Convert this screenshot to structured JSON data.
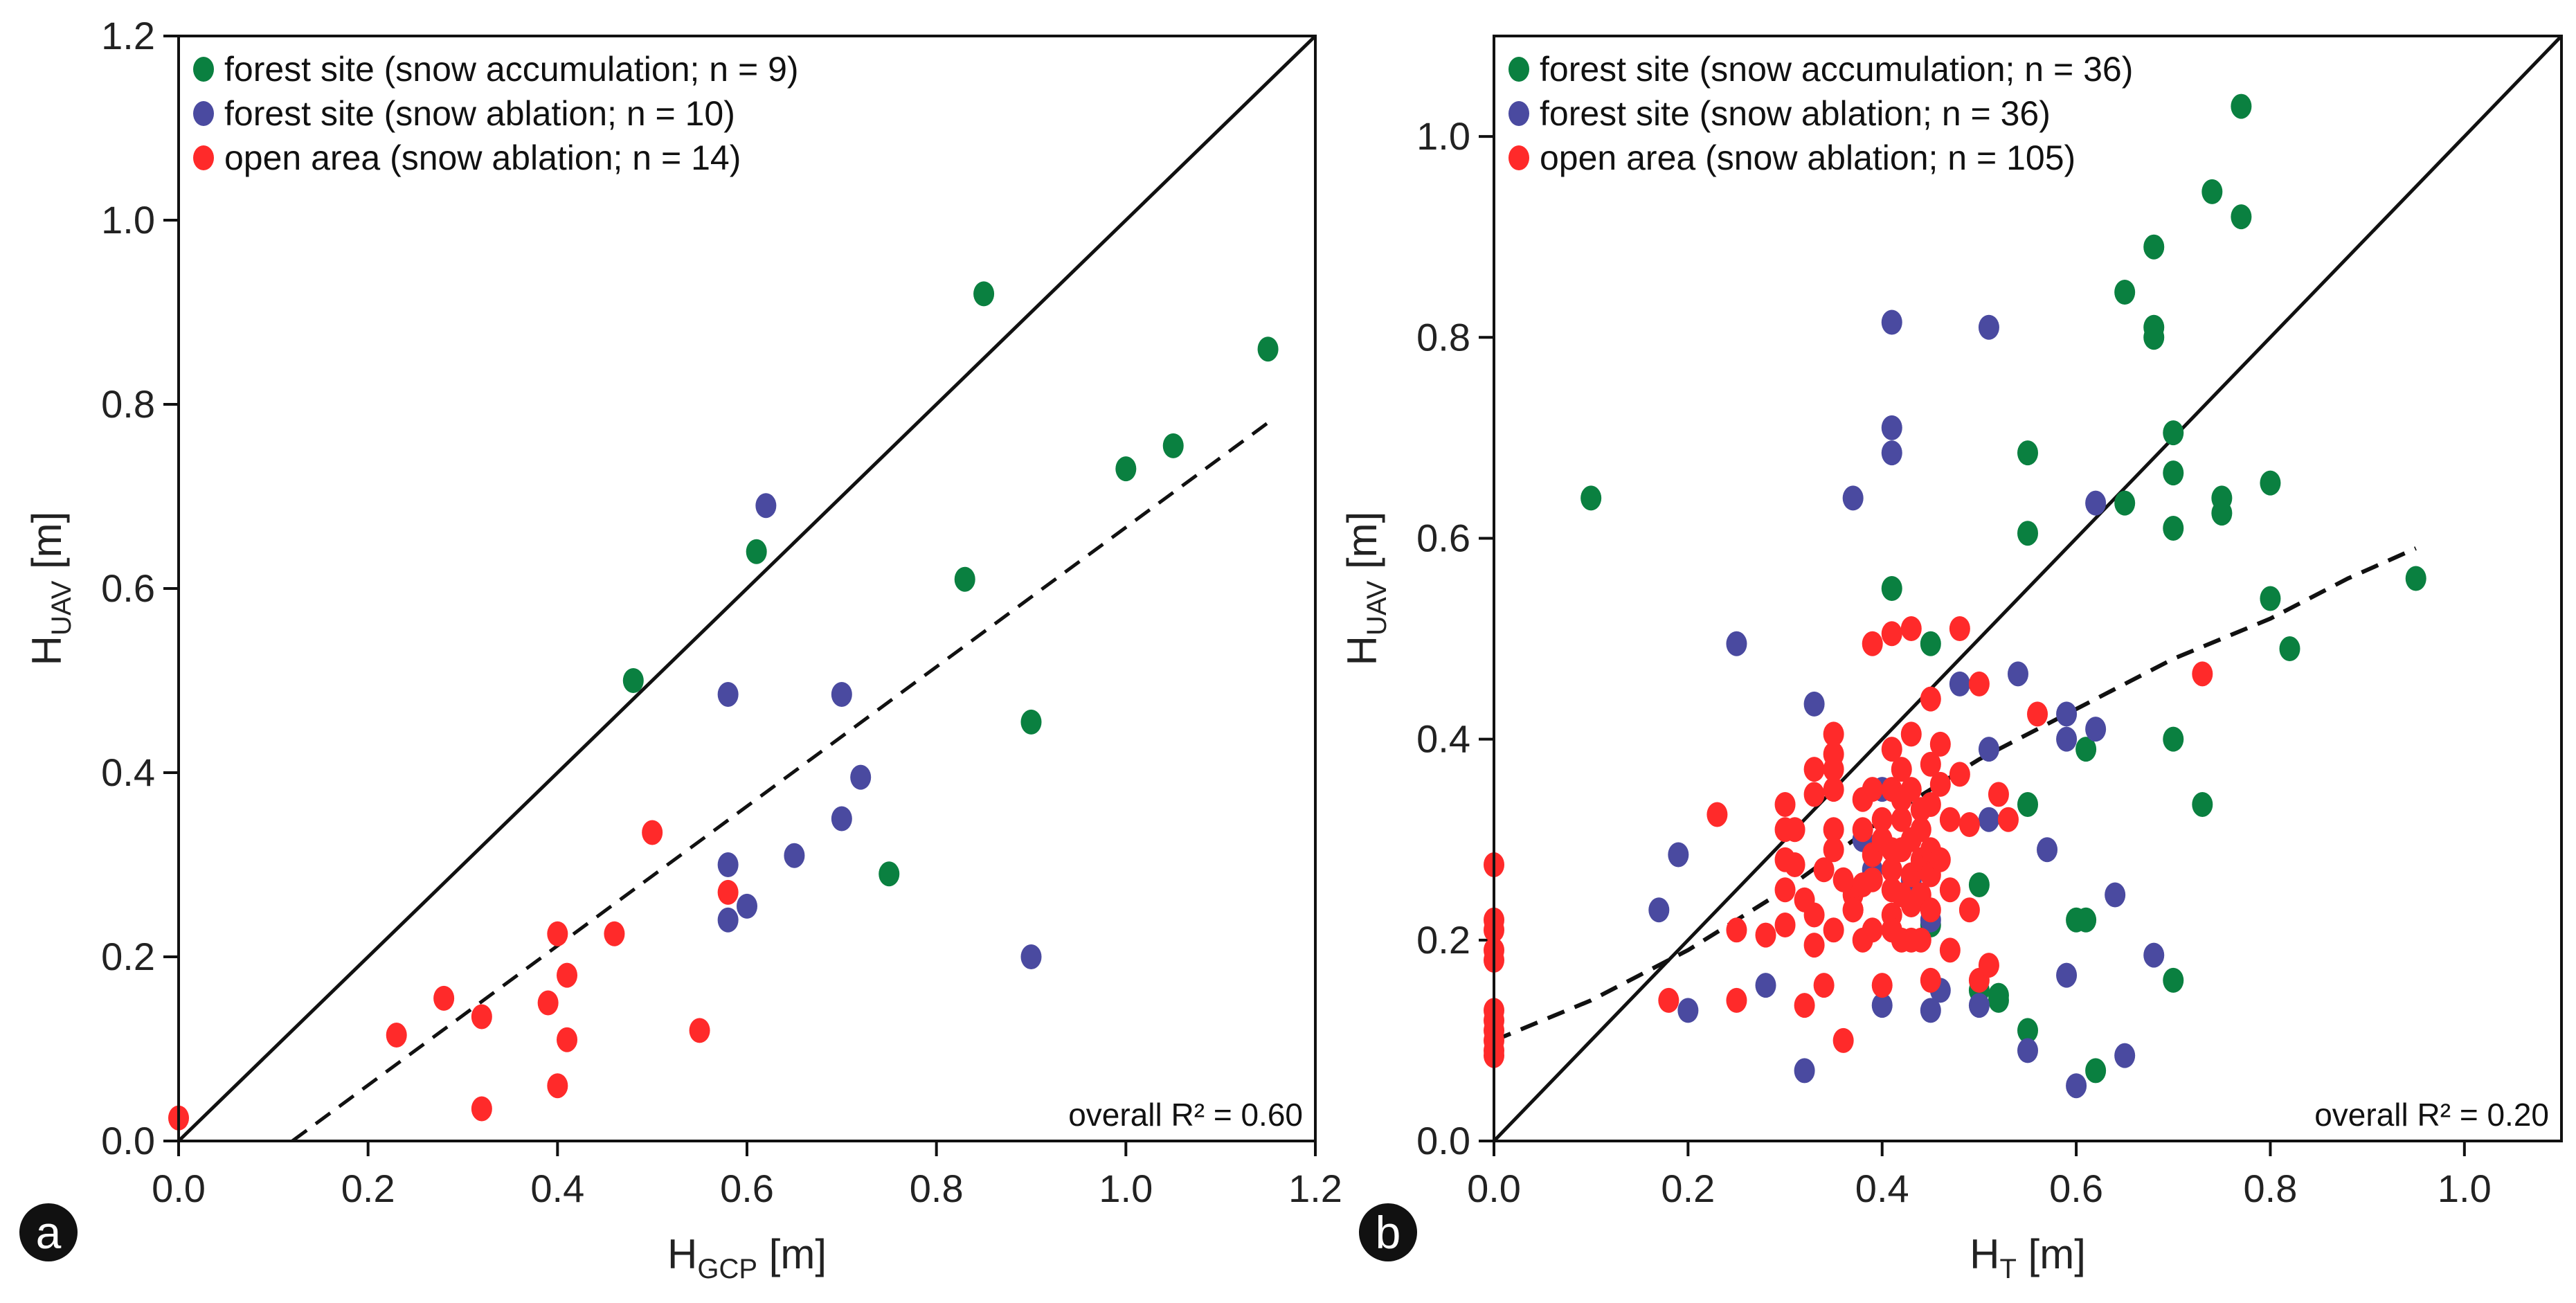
{
  "chart_data": [
    {
      "type": "scatter",
      "panel_label": "a",
      "xlabel": {
        "main": "H",
        "sub": "GCP",
        "unit": " [m]"
      },
      "ylabel": {
        "main": "H",
        "sub": "UAV",
        "unit": " [m]"
      },
      "xlim": [
        0,
        1.2
      ],
      "ylim": [
        0,
        1.2
      ],
      "xticks": [
        0,
        0.2,
        0.4,
        0.6,
        0.8,
        1.0,
        1.2
      ],
      "yticks": [
        0,
        0.2,
        0.4,
        0.6,
        0.8,
        1.0,
        1.2
      ],
      "xtick_labels": [
        "0.0",
        "0.2",
        "0.4",
        "0.6",
        "0.8",
        "1.0",
        "1.2"
      ],
      "ytick_labels": [
        "0.0",
        "0.2",
        "0.4",
        "0.6",
        "0.8",
        "1.0",
        "1.2"
      ],
      "annotation": "overall R² = 0.60",
      "one_to_one_line": {
        "from": [
          0,
          0
        ],
        "to": [
          1.2,
          1.2
        ]
      },
      "fit_line": {
        "from": [
          0.12,
          0
        ],
        "to": [
          1.15,
          0.78
        ]
      },
      "series": [
        {
          "name": "forest site (snow accumulation; n = 9)",
          "color": "#0a8040",
          "points": [
            [
              0.48,
              0.5
            ],
            [
              0.61,
              0.64
            ],
            [
              0.85,
              0.92
            ],
            [
              1.15,
              0.86
            ],
            [
              1.0,
              0.73
            ],
            [
              1.05,
              0.755
            ],
            [
              0.83,
              0.61
            ],
            [
              0.9,
              0.455
            ],
            [
              0.75,
              0.29
            ]
          ]
        },
        {
          "name": "forest site (snow ablation; n = 10)",
          "color": "#4a4aa0",
          "points": [
            [
              0.62,
              0.69
            ],
            [
              0.58,
              0.485
            ],
            [
              0.7,
              0.485
            ],
            [
              0.72,
              0.395
            ],
            [
              0.7,
              0.35
            ],
            [
              0.65,
              0.31
            ],
            [
              0.58,
              0.3
            ],
            [
              0.6,
              0.255
            ],
            [
              0.58,
              0.24
            ],
            [
              0.9,
              0.2
            ]
          ]
        },
        {
          "name": "open area (snow ablation; n = 14)",
          "color": "#ff2a2a",
          "points": [
            [
              0.0,
              0.025
            ],
            [
              0.23,
              0.115
            ],
            [
              0.28,
              0.155
            ],
            [
              0.32,
              0.135
            ],
            [
              0.32,
              0.035
            ],
            [
              0.39,
              0.15
            ],
            [
              0.4,
              0.225
            ],
            [
              0.41,
              0.18
            ],
            [
              0.41,
              0.11
            ],
            [
              0.4,
              0.06
            ],
            [
              0.46,
              0.225
            ],
            [
              0.5,
              0.335
            ],
            [
              0.58,
              0.27
            ],
            [
              0.55,
              0.12
            ]
          ]
        }
      ]
    },
    {
      "type": "scatter",
      "panel_label": "b",
      "xlabel": {
        "main": "H",
        "sub": "T",
        "unit": " [m]"
      },
      "ylabel": {
        "main": "H",
        "sub": "UAV",
        "unit": " [m]"
      },
      "xlim": [
        0,
        1.1
      ],
      "ylim": [
        0,
        1.1
      ],
      "xticks": [
        0,
        0.2,
        0.4,
        0.6,
        0.8,
        1.0
      ],
      "yticks": [
        0,
        0.2,
        0.4,
        0.6,
        0.8,
        1.0
      ],
      "xtick_labels": [
        "0.0",
        "0.2",
        "0.4",
        "0.6",
        "0.8",
        "1.0"
      ],
      "ytick_labels": [
        "0.0",
        "0.2",
        "0.4",
        "0.6",
        "0.8",
        "1.0"
      ],
      "annotation": "overall R² = 0.20",
      "one_to_one_line": {
        "from": [
          0,
          0
        ],
        "to": [
          1.1,
          1.1
        ]
      },
      "fit_curve": [
        [
          0.0,
          0.1
        ],
        [
          0.1,
          0.14
        ],
        [
          0.2,
          0.19
        ],
        [
          0.3,
          0.25
        ],
        [
          0.4,
          0.32
        ],
        [
          0.5,
          0.38
        ],
        [
          0.6,
          0.43
        ],
        [
          0.7,
          0.48
        ],
        [
          0.8,
          0.52
        ],
        [
          0.88,
          0.56
        ],
        [
          0.95,
          0.59
        ]
      ],
      "series": [
        {
          "name": "forest site (snow accumulation; n = 36)",
          "color": "#0a8040",
          "points": [
            [
              0.1,
              0.64
            ],
            [
              0.77,
              1.03
            ],
            [
              0.74,
              0.945
            ],
            [
              0.77,
              0.92
            ],
            [
              0.68,
              0.89
            ],
            [
              0.65,
              0.845
            ],
            [
              0.68,
              0.81
            ],
            [
              0.68,
              0.8
            ],
            [
              0.7,
              0.705
            ],
            [
              0.55,
              0.685
            ],
            [
              0.7,
              0.665
            ],
            [
              0.8,
              0.655
            ],
            [
              0.75,
              0.64
            ],
            [
              0.75,
              0.625
            ],
            [
              0.65,
              0.635
            ],
            [
              0.7,
              0.61
            ],
            [
              0.55,
              0.605
            ],
            [
              0.95,
              0.56
            ],
            [
              0.41,
              0.55
            ],
            [
              0.8,
              0.54
            ],
            [
              0.45,
              0.495
            ],
            [
              0.82,
              0.49
            ],
            [
              0.61,
              0.39
            ],
            [
              0.7,
              0.4
            ],
            [
              0.55,
              0.335
            ],
            [
              0.73,
              0.335
            ],
            [
              0.5,
              0.255
            ],
            [
              0.6,
              0.22
            ],
            [
              0.61,
              0.22
            ],
            [
              0.45,
              0.215
            ],
            [
              0.7,
              0.16
            ],
            [
              0.52,
              0.145
            ],
            [
              0.55,
              0.11
            ],
            [
              0.62,
              0.07
            ],
            [
              0.5,
              0.15
            ],
            [
              0.52,
              0.14
            ]
          ]
        },
        {
          "name": "forest site (snow ablation; n = 36)",
          "color": "#4a4aa0",
          "points": [
            [
              0.41,
              0.815
            ],
            [
              0.51,
              0.81
            ],
            [
              0.41,
              0.71
            ],
            [
              0.41,
              0.685
            ],
            [
              0.37,
              0.64
            ],
            [
              0.62,
              0.635
            ],
            [
              0.25,
              0.495
            ],
            [
              0.48,
              0.455
            ],
            [
              0.54,
              0.465
            ],
            [
              0.33,
              0.435
            ],
            [
              0.59,
              0.425
            ],
            [
              0.62,
              0.41
            ],
            [
              0.59,
              0.4
            ],
            [
              0.51,
              0.39
            ],
            [
              0.4,
              0.35
            ],
            [
              0.51,
              0.32
            ],
            [
              0.19,
              0.285
            ],
            [
              0.57,
              0.29
            ],
            [
              0.39,
              0.27
            ],
            [
              0.43,
              0.26
            ],
            [
              0.64,
              0.245
            ],
            [
              0.17,
              0.23
            ],
            [
              0.45,
              0.22
            ],
            [
              0.68,
              0.185
            ],
            [
              0.59,
              0.165
            ],
            [
              0.28,
              0.155
            ],
            [
              0.46,
              0.15
            ],
            [
              0.2,
              0.13
            ],
            [
              0.4,
              0.135
            ],
            [
              0.45,
              0.13
            ],
            [
              0.5,
              0.135
            ],
            [
              0.55,
              0.09
            ],
            [
              0.65,
              0.085
            ],
            [
              0.32,
              0.07
            ],
            [
              0.6,
              0.055
            ],
            [
              0.38,
              0.3
            ]
          ]
        },
        {
          "name": "open area (snow ablation; n = 105)",
          "color": "#ff2a2a",
          "points": [
            [
              0.0,
              0.275
            ],
            [
              0.0,
              0.22
            ],
            [
              0.0,
              0.21
            ],
            [
              0.0,
              0.19
            ],
            [
              0.0,
              0.18
            ],
            [
              0.0,
              0.13
            ],
            [
              0.0,
              0.12
            ],
            [
              0.0,
              0.11
            ],
            [
              0.0,
              0.1
            ],
            [
              0.0,
              0.09
            ],
            [
              0.0,
              0.085
            ],
            [
              0.18,
              0.14
            ],
            [
              0.23,
              0.325
            ],
            [
              0.25,
              0.21
            ],
            [
              0.25,
              0.14
            ],
            [
              0.28,
              0.205
            ],
            [
              0.3,
              0.335
            ],
            [
              0.3,
              0.31
            ],
            [
              0.3,
              0.28
            ],
            [
              0.3,
              0.25
            ],
            [
              0.3,
              0.215
            ],
            [
              0.31,
              0.31
            ],
            [
              0.31,
              0.275
            ],
            [
              0.32,
              0.24
            ],
            [
              0.32,
              0.135
            ],
            [
              0.33,
              0.37
            ],
            [
              0.33,
              0.345
            ],
            [
              0.33,
              0.225
            ],
            [
              0.33,
              0.195
            ],
            [
              0.34,
              0.155
            ],
            [
              0.35,
              0.405
            ],
            [
              0.35,
              0.385
            ],
            [
              0.35,
              0.37
            ],
            [
              0.35,
              0.35
            ],
            [
              0.35,
              0.31
            ],
            [
              0.35,
              0.29
            ],
            [
              0.36,
              0.1
            ],
            [
              0.37,
              0.245
            ],
            [
              0.37,
              0.23
            ],
            [
              0.38,
              0.34
            ],
            [
              0.38,
              0.31
            ],
            [
              0.38,
              0.255
            ],
            [
              0.39,
              0.495
            ],
            [
              0.39,
              0.35
            ],
            [
              0.39,
              0.285
            ],
            [
              0.39,
              0.26
            ],
            [
              0.4,
              0.155
            ],
            [
              0.4,
              0.32
            ],
            [
              0.41,
              0.505
            ],
            [
              0.41,
              0.39
            ],
            [
              0.41,
              0.35
            ],
            [
              0.41,
              0.29
            ],
            [
              0.41,
              0.27
            ],
            [
              0.41,
              0.25
            ],
            [
              0.41,
              0.225
            ],
            [
              0.41,
              0.21
            ],
            [
              0.42,
              0.37
            ],
            [
              0.42,
              0.32
            ],
            [
              0.42,
              0.245
            ],
            [
              0.42,
              0.2
            ],
            [
              0.43,
              0.51
            ],
            [
              0.43,
              0.405
            ],
            [
              0.43,
              0.35
            ],
            [
              0.43,
              0.3
            ],
            [
              0.43,
              0.265
            ],
            [
              0.43,
              0.235
            ],
            [
              0.43,
              0.2
            ],
            [
              0.44,
              0.28
            ],
            [
              0.44,
              0.245
            ],
            [
              0.44,
              0.2
            ],
            [
              0.45,
              0.44
            ],
            [
              0.45,
              0.375
            ],
            [
              0.45,
              0.335
            ],
            [
              0.45,
              0.29
            ],
            [
              0.45,
              0.265
            ],
            [
              0.45,
              0.23
            ],
            [
              0.45,
              0.16
            ],
            [
              0.46,
              0.395
            ],
            [
              0.46,
              0.355
            ],
            [
              0.46,
              0.28
            ],
            [
              0.47,
              0.32
            ],
            [
              0.47,
              0.19
            ],
            [
              0.48,
              0.51
            ],
            [
              0.48,
              0.365
            ],
            [
              0.49,
              0.315
            ],
            [
              0.49,
              0.23
            ],
            [
              0.5,
              0.455
            ],
            [
              0.5,
              0.16
            ],
            [
              0.51,
              0.175
            ],
            [
              0.52,
              0.345
            ],
            [
              0.53,
              0.32
            ],
            [
              0.56,
              0.425
            ],
            [
              0.73,
              0.465
            ],
            [
              0.37,
              0.23
            ],
            [
              0.36,
              0.26
            ],
            [
              0.34,
              0.27
            ],
            [
              0.42,
              0.29
            ],
            [
              0.44,
              0.31
            ],
            [
              0.47,
              0.25
            ],
            [
              0.39,
              0.21
            ],
            [
              0.4,
              0.3
            ],
            [
              0.38,
              0.2
            ],
            [
              0.44,
              0.33
            ],
            [
              0.35,
              0.21
            ],
            [
              0.42,
              0.34
            ]
          ]
        }
      ]
    }
  ]
}
